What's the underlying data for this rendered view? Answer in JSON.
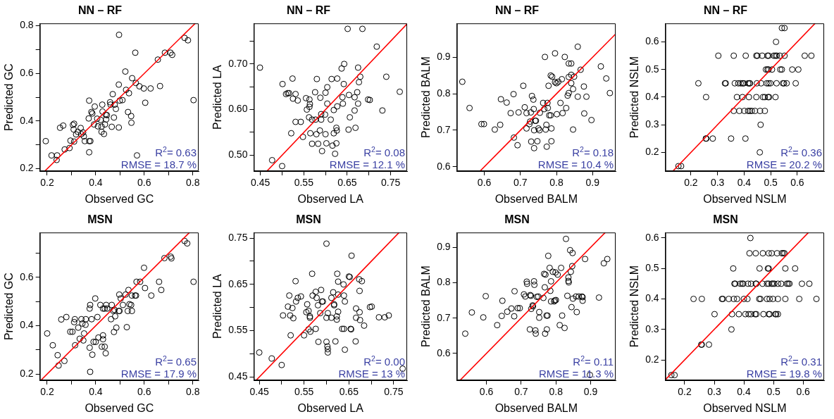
{
  "chart_data": [
    {
      "type": "scatter",
      "title": "NN – RF",
      "xlabel": "Observed GC",
      "ylabel": "Predicted GC",
      "xlim": [
        0.17,
        0.824
      ],
      "ylim": [
        0.19,
        0.81
      ],
      "xticks": [
        0.2,
        {
          "value": 0.3,
          "label": null
        },
        0.4,
        {
          "value": 0.5,
          "label": null
        },
        0.6,
        {
          "value": 0.7,
          "label": null
        },
        0.8
      ],
      "yticks": [
        0.2,
        {
          "value": 0.3,
          "label": null
        },
        0.4,
        {
          "value": 0.5,
          "label": null
        },
        0.6,
        {
          "value": 0.7,
          "label": null
        },
        0.8
      ],
      "marker": "circle",
      "annotations": [
        "R$^{2}$= 0.63",
        "RMSE = 18.7 %"
      ],
      "series": [
        {
          "type": "scatter",
          "color": "#000000",
          "x": [
            0.194,
            0.218,
            0.241,
            0.239,
            0.253,
            0.266,
            0.272,
            0.292,
            0.296,
            0.306,
            0.311,
            0.309,
            0.311,
            0.319,
            0.326,
            0.338,
            0.34,
            0.348,
            0.351,
            0.355,
            0.373,
            0.378,
            0.373,
            0.373,
            0.371,
            0.382,
            0.386,
            0.393,
            0.396,
            0.406,
            0.409,
            0.42,
            0.424,
            0.427,
            0.428,
            0.424,
            0.434,
            0.438,
            0.441,
            0.443,
            0.446,
            0.459,
            0.461,
            0.466,
            0.47,
            0.475,
            0.478,
            0.483,
            0.495,
            0.495,
            0.496,
            0.499,
            0.51,
            0.522,
            0.525,
            0.533,
            0.537,
            0.546,
            0.547,
            0.55,
            0.563,
            0.565,
            0.57,
            0.58,
            0.598,
            0.604,
            0.626,
            0.656,
            0.665,
            0.685,
            0.708,
            0.715,
            0.766,
            0.78,
            0.803
          ],
          "values": [
            0.316,
            0.256,
            0.256,
            0.237,
            0.372,
            0.381,
            0.281,
            0.287,
            0.318,
            0.384,
            0.389,
            0.365,
            0.314,
            0.344,
            0.355,
            0.371,
            0.345,
            0.352,
            0.336,
            0.316,
            0.316,
            0.316,
            0.269,
            0.486,
            0.411,
            0.438,
            0.432,
            0.386,
            0.461,
            0.41,
            0.378,
            0.405,
            0.377,
            0.469,
            0.44,
            0.355,
            0.346,
            0.386,
            0.427,
            0.407,
            0.425,
            0.479,
            0.469,
            0.376,
            0.513,
            0.415,
            0.469,
            0.451,
            0.373,
            0.553,
            0.762,
            0.486,
            0.488,
            0.608,
            0.531,
            0.438,
            0.517,
            0.421,
            0.393,
            0.58,
            0.687,
            0.56,
            0.256,
            0.546,
            0.537,
            0.477,
            0.537,
            0.658,
            0.547,
            0.687,
            0.687,
            0.678,
            0.749,
            0.739,
            0.488
          ]
        },
        {
          "type": "line",
          "marker": "none",
          "color": "#ff0000",
          "x": [
            0.19,
            0.81
          ],
          "values": [
            0.19,
            0.81
          ]
        }
      ]
    },
    {
      "type": "scatter",
      "title": "NN – RF",
      "xlabel": "Observed LA",
      "ylabel": "Predicted LA",
      "xlim": [
        0.435,
        0.788
      ],
      "ylim": [
        0.465,
        0.789
      ],
      "xticks": [
        0.45,
        {
          "value": 0.5,
          "label": null
        },
        0.55,
        {
          "value": 0.6,
          "label": null
        },
        0.65,
        {
          "value": 0.7,
          "label": null
        },
        0.75
      ],
      "yticks": [
        {
          "value": 0.5,
          "label": "0.50"
        },
        {
          "value": 0.55,
          "label": null
        },
        {
          "value": 0.6,
          "label": "0.60"
        },
        {
          "value": 0.65,
          "label": null
        },
        {
          "value": 0.7,
          "label": "0.70"
        },
        {
          "value": 0.75,
          "label": null
        }
      ],
      "marker": "circle",
      "annotations": [
        "R$^{2}$= 0.08",
        "RMSE = 12.1 %"
      ],
      "series": [
        {
          "type": "scatter",
          "color": "#000000",
          "x": [
            0.449,
            0.477,
            0.5,
            0.501,
            0.509,
            0.513,
            0.516,
            0.524,
            0.525,
            0.521,
            0.531,
            0.531,
            0.536,
            0.543,
            0.548,
            0.555,
            0.557,
            0.563,
            0.564,
            0.563,
            0.562,
            0.565,
            0.569,
            0.569,
            0.576,
            0.577,
            0.58,
            0.579,
            0.583,
            0.588,
            0.587,
            0.59,
            0.59,
            0.592,
            0.599,
            0.6,
            0.6,
            0.602,
            0.604,
            0.604,
            0.612,
            0.614,
            0.616,
            0.619,
            0.619,
            0.622,
            0.625,
            0.625,
            0.626,
            0.627,
            0.627,
            0.637,
            0.639,
            0.64,
            0.642,
            0.643,
            0.651,
            0.653,
            0.654,
            0.656,
            0.667,
            0.667,
            0.669,
            0.673,
            0.675,
            0.675,
            0.677,
            0.68,
            0.685,
            0.698,
            0.702,
            0.718,
            0.731,
            0.74,
            0.771
          ],
          "values": [
            0.692,
            0.489,
            0.476,
            0.656,
            0.634,
            0.636,
            0.636,
            0.668,
            0.624,
            0.548,
            0.634,
            0.573,
            0.62,
            0.573,
            0.54,
            0.625,
            0.6,
            0.622,
            0.612,
            0.606,
            0.583,
            0.548,
            0.525,
            0.578,
            0.638,
            0.578,
            0.667,
            0.546,
            0.525,
            0.626,
            0.554,
            0.59,
            0.578,
            0.509,
            0.589,
            0.637,
            0.546,
            0.526,
            0.649,
            0.613,
            0.578,
            0.667,
            0.521,
            0.599,
            0.548,
            0.503,
            0.526,
            0.56,
            0.554,
            0.607,
            0.668,
            0.69,
            0.627,
            0.613,
            0.656,
            0.7,
            0.777,
            0.556,
            0.632,
            0.583,
            0.627,
            0.598,
            0.56,
            0.638,
            0.692,
            0.613,
            0.66,
            0.672,
            0.777,
            0.622,
            0.621,
            0.738,
            0.598,
            0.672,
            0.639
          ]
        },
        {
          "type": "line",
          "marker": "none",
          "color": "#ff0000",
          "x": [
            0.465,
            0.788
          ],
          "values": [
            0.465,
            0.788
          ]
        }
      ]
    },
    {
      "type": "scatter",
      "title": "NN – RF",
      "xlabel": "Observed BALM",
      "ylabel": "Predicted BALM",
      "xlim": [
        0.524,
        0.964
      ],
      "ylim": [
        0.588,
        0.993
      ],
      "xticks": [
        0.6,
        0.7,
        0.8,
        0.9
      ],
      "yticks": [
        0.6,
        0.7,
        0.8,
        0.9
      ],
      "marker": "circle",
      "annotations": [
        "R$^{2}$= 0.18",
        "RMSE = 10.4 %"
      ],
      "series": [
        {
          "type": "scatter",
          "color": "#000000",
          "x": [
            0.539,
            0.559,
            0.592,
            0.599,
            0.629,
            0.644,
            0.646,
            0.662,
            0.673,
            0.681,
            0.682,
            0.692,
            0.695,
            0.708,
            0.712,
            0.717,
            0.717,
            0.725,
            0.727,
            0.729,
            0.73,
            0.732,
            0.736,
            0.737,
            0.738,
            0.738,
            0.741,
            0.743,
            0.747,
            0.75,
            0.753,
            0.754,
            0.763,
            0.766,
            0.768,
            0.77,
            0.772,
            0.773,
            0.775,
            0.776,
            0.778,
            0.78,
            0.784,
            0.784,
            0.786,
            0.786,
            0.788,
            0.796,
            0.796,
            0.8,
            0.801,
            0.805,
            0.811,
            0.815,
            0.817,
            0.823,
            0.827,
            0.831,
            0.834,
            0.834,
            0.834,
            0.841,
            0.841,
            0.841,
            0.846,
            0.846,
            0.849,
            0.859,
            0.859,
            0.867,
            0.876,
            0.877,
            0.883,
            0.897,
            0.923,
            0.938,
            0.948
          ],
          "values": [
            0.833,
            0.761,
            0.717,
            0.717,
            0.702,
            0.715,
            0.785,
            0.776,
            0.747,
            0.799,
            0.68,
            0.659,
            0.749,
            0.822,
            0.763,
            0.747,
            0.705,
            0.717,
            0.724,
            0.749,
            0.669,
            0.794,
            0.784,
            0.758,
            0.7,
            0.651,
            0.726,
            0.726,
            0.67,
            0.705,
            0.7,
            0.748,
            0.775,
            0.758,
            0.901,
            0.702,
            0.715,
            0.655,
            0.775,
            0.761,
            0.822,
            0.741,
            0.741,
            0.85,
            0.705,
            0.67,
            0.847,
            0.911,
            0.832,
            0.829,
            0.744,
            0.833,
            0.775,
            0.84,
            0.747,
            0.901,
            0.761,
            0.795,
            0.802,
            0.846,
            0.883,
            0.883,
            0.829,
            0.852,
            0.813,
            0.702,
            0.847,
            0.792,
            0.929,
            0.866,
            0.82,
            0.746,
            0.792,
            0.728,
            0.875,
            0.842,
            0.802
          ]
        },
        {
          "type": "line",
          "marker": "none",
          "color": "#ff0000",
          "x": [
            0.588,
            0.964
          ],
          "values": [
            0.588,
            0.964
          ]
        }
      ]
    },
    {
      "type": "scatter",
      "title": "NN – RF",
      "xlabel": "Observed NSLM",
      "ylabel": "Predicted NSLM",
      "xlim": [
        0.104,
        0.701
      ],
      "ylim": [
        0.132,
        0.667
      ],
      "xticks": [
        0.2,
        0.3,
        0.4,
        0.5,
        0.6
      ],
      "yticks": [
        0.2,
        0.3,
        0.4,
        0.5,
        0.6
      ],
      "marker": "circle",
      "annotations": [
        "R$^{2}$= 0.36",
        "RMSE = 20.2 %"
      ],
      "series": [
        {
          "type": "scatter",
          "color": "#000000",
          "x": [
            0.153,
            0.163,
            0.459,
            0.256,
            0.258,
            0.282,
            0.351,
            0.405,
            0.462,
            0.361,
            0.382,
            0.401,
            0.415,
            0.422,
            0.429,
            0.441,
            0.46,
            0.478,
            0.257,
            0.373,
            0.394,
            0.418,
            0.446,
            0.471,
            0.478,
            0.49,
            0.494,
            0.518,
            0.228,
            0.328,
            0.331,
            0.365,
            0.378,
            0.387,
            0.394,
            0.399,
            0.415,
            0.42,
            0.422,
            0.448,
            0.464,
            0.485,
            0.492,
            0.499,
            0.522,
            0.546,
            0.55,
            0.56,
            0.594,
            0.482,
            0.488,
            0.492,
            0.505,
            0.536,
            0.542,
            0.581,
            0.604,
            0.303,
            0.361,
            0.406,
            0.446,
            0.45,
            0.468,
            0.488,
            0.492,
            0.512,
            0.518,
            0.523,
            0.534,
            0.552,
            0.628,
            0.653,
            0.52,
            0.542,
            0.552
          ],
          "values": [
            0.15,
            0.15,
            0.2,
            0.25,
            0.25,
            0.25,
            0.25,
            0.25,
            0.3,
            0.35,
            0.35,
            0.35,
            0.35,
            0.35,
            0.35,
            0.35,
            0.35,
            0.35,
            0.4,
            0.4,
            0.4,
            0.4,
            0.4,
            0.4,
            0.4,
            0.4,
            0.4,
            0.4,
            0.45,
            0.45,
            0.45,
            0.45,
            0.45,
            0.45,
            0.45,
            0.45,
            0.45,
            0.45,
            0.45,
            0.45,
            0.45,
            0.45,
            0.45,
            0.45,
            0.45,
            0.45,
            0.45,
            0.45,
            0.45,
            0.5,
            0.5,
            0.5,
            0.5,
            0.5,
            0.5,
            0.5,
            0.5,
            0.55,
            0.55,
            0.55,
            0.55,
            0.55,
            0.55,
            0.55,
            0.55,
            0.55,
            0.55,
            0.55,
            0.55,
            0.55,
            0.55,
            0.55,
            0.6,
            0.65,
            0.65
          ]
        },
        {
          "type": "line",
          "marker": "none",
          "color": "#ff0000",
          "x": [
            0.132,
            0.667
          ],
          "values": [
            0.132,
            0.667
          ]
        }
      ]
    },
    {
      "type": "scatter",
      "title": "MSN",
      "xlabel": "Observed GC",
      "ylabel": "Predicted GC",
      "xlim": [
        0.17,
        0.824
      ],
      "ylim": [
        0.174,
        0.786
      ],
      "xticks": [
        0.2,
        {
          "value": 0.3,
          "label": null
        },
        0.4,
        {
          "value": 0.5,
          "label": null
        },
        0.6,
        {
          "value": 0.7,
          "label": null
        },
        0.8
      ],
      "yticks": [
        0.2,
        {
          "value": 0.3,
          "label": null
        },
        0.4,
        {
          "value": 0.5,
          "label": null
        },
        0.6,
        {
          "value": 0.7,
          "label": null
        }
      ],
      "marker": "circle",
      "annotations": [
        "R$^{2}$= 0.65",
        "RMSE = 17.9 %"
      ],
      "series": [
        {
          "type": "scatter",
          "color": "#000000",
          "x": [
            0.2,
            0.223,
            0.243,
            0.247,
            0.258,
            0.271,
            0.279,
            0.295,
            0.304,
            0.314,
            0.311,
            0.315,
            0.328,
            0.334,
            0.341,
            0.345,
            0.349,
            0.352,
            0.358,
            0.359,
            0.375,
            0.375,
            0.377,
            0.377,
            0.383,
            0.386,
            0.391,
            0.4,
            0.398,
            0.407,
            0.411,
            0.419,
            0.425,
            0.43,
            0.43,
            0.437,
            0.43,
            0.437,
            0.441,
            0.443,
            0.447,
            0.463,
            0.466,
            0.472,
            0.475,
            0.48,
            0.485,
            0.477,
            0.495,
            0.498,
            0.497,
            0.503,
            0.512,
            0.523,
            0.528,
            0.532,
            0.535,
            0.539,
            0.546,
            0.549,
            0.549,
            0.562,
            0.566,
            0.568,
            0.583,
            0.599,
            0.603,
            0.629,
            0.661,
            0.67,
            0.683,
            0.709,
            0.712,
            0.766,
            0.777,
            0.803
          ],
          "values": [
            0.368,
            0.319,
            0.278,
            0.235,
            0.426,
            0.254,
            0.436,
            0.375,
            0.375,
            0.427,
            0.415,
            0.319,
            0.392,
            0.346,
            0.427,
            0.409,
            0.339,
            0.368,
            0.404,
            0.427,
            0.309,
            0.471,
            0.209,
            0.486,
            0.427,
            0.28,
            0.333,
            0.333,
            0.513,
            0.436,
            0.351,
            0.486,
            0.313,
            0.36,
            0.344,
            0.313,
            0.471,
            0.471,
            0.286,
            0.486,
            0.471,
            0.427,
            0.486,
            0.462,
            0.374,
            0.439,
            0.392,
            0.466,
            0.461,
            0.461,
            0.529,
            0.513,
            0.486,
            0.529,
            0.394,
            0.461,
            0.548,
            0.489,
            0.486,
            0.461,
            0.525,
            0.525,
            0.525,
            0.582,
            0.582,
            0.64,
            0.556,
            0.525,
            0.582,
            0.548,
            0.68,
            0.686,
            0.679,
            0.751,
            0.741,
            0.582
          ]
        },
        {
          "type": "line",
          "marker": "none",
          "color": "#ff0000",
          "x": [
            0.174,
            0.786
          ],
          "values": [
            0.174,
            0.786
          ]
        }
      ]
    },
    {
      "type": "scatter",
      "title": "MSN",
      "xlabel": "Observed LA",
      "ylabel": "Predicted LA",
      "xlim": [
        0.438,
        0.78
      ],
      "ylim": [
        0.443,
        0.762
      ],
      "xticks": [
        0.45,
        {
          "value": 0.5,
          "label": null
        },
        0.55,
        {
          "value": 0.6,
          "label": null
        },
        0.65,
        {
          "value": 0.7,
          "label": null
        },
        0.75
      ],
      "yticks": [
        0.45,
        {
          "value": 0.5,
          "label": null
        },
        0.55,
        {
          "value": 0.6,
          "label": null
        },
        0.65,
        {
          "value": 0.7,
          "label": null
        },
        0.75
      ],
      "marker": "circle",
      "annotations": [
        "R$^{2}$= 0.00",
        "RMSE = 13 %"
      ],
      "series": [
        {
          "type": "scatter",
          "color": "#000000",
          "x": [
            0.45,
            0.478,
            0.5,
            0.503,
            0.514,
            0.517,
            0.519,
            0.52,
            0.524,
            0.526,
            0.531,
            0.532,
            0.536,
            0.543,
            0.55,
            0.557,
            0.555,
            0.56,
            0.563,
            0.563,
            0.56,
            0.564,
            0.568,
            0.569,
            0.576,
            0.576,
            0.578,
            0.582,
            0.581,
            0.586,
            0.588,
            0.59,
            0.592,
            0.6,
            0.6,
            0.602,
            0.603,
            0.603,
            0.603,
            0.6,
            0.611,
            0.611,
            0.617,
            0.617,
            0.615,
            0.62,
            0.623,
            0.624,
            0.623,
            0.626,
            0.626,
            0.626,
            0.635,
            0.639,
            0.638,
            0.639,
            0.641,
            0.641,
            0.65,
            0.652,
            0.654,
            0.655,
            0.656,
            0.666,
            0.666,
            0.665,
            0.673,
            0.674,
            0.674,
            0.675,
            0.679,
            0.684,
            0.697,
            0.701,
            0.717,
            0.73,
            0.739,
            0.77
          ],
          "values": [
            0.503,
            0.49,
            0.476,
            0.583,
            0.602,
            0.626,
            0.583,
            0.54,
            0.599,
            0.577,
            0.657,
            0.613,
            0.621,
            0.624,
            0.54,
            0.607,
            0.59,
            0.593,
            0.581,
            0.578,
            0.553,
            0.548,
            0.673,
            0.626,
            0.554,
            0.634,
            0.621,
            0.526,
            0.605,
            0.588,
            0.638,
            0.613,
            0.613,
            0.738,
            0.526,
            0.516,
            0.51,
            0.503,
            0.588,
            0.578,
            0.621,
            0.578,
            0.607,
            0.605,
            0.633,
            0.527,
            0.574,
            0.673,
            0.581,
            0.656,
            0.591,
            0.628,
            0.554,
            0.554,
            0.65,
            0.626,
            0.613,
            0.509,
            0.667,
            0.666,
            0.554,
            0.553,
            0.712,
            0.598,
            0.578,
            0.527,
            0.661,
            0.636,
            0.59,
            0.573,
            0.657,
            0.561,
            0.601,
            0.602,
            0.579,
            0.579,
            0.583,
            0.468
          ]
        },
        {
          "type": "line",
          "marker": "none",
          "color": "#ff0000",
          "x": [
            0.443,
            0.762
          ],
          "values": [
            0.443,
            0.762
          ]
        }
      ]
    },
    {
      "type": "scatter",
      "title": "MSN",
      "xlabel": "Observed BALM",
      "ylabel": "Predicted BALM",
      "xlim": [
        0.515,
        0.972
      ],
      "ylim": [
        0.524,
        0.942
      ],
      "xticks": [
        0.6,
        0.7,
        0.8,
        0.9
      ],
      "yticks": [
        0.6,
        0.7,
        0.8,
        0.9
      ],
      "marker": "circle",
      "annotations": [
        "R$^{2}$= 0.11",
        "RMSE = 11.3 %"
      ],
      "series": [
        {
          "type": "scatter",
          "color": "#000000",
          "x": [
            0.539,
            0.558,
            0.591,
            0.598,
            0.631,
            0.644,
            0.646,
            0.66,
            0.672,
            0.68,
            0.681,
            0.69,
            0.696,
            0.708,
            0.712,
            0.716,
            0.717,
            0.725,
            0.726,
            0.728,
            0.729,
            0.733,
            0.734,
            0.737,
            0.738,
            0.741,
            0.742,
            0.745,
            0.749,
            0.752,
            0.752,
            0.764,
            0.766,
            0.768,
            0.769,
            0.77,
            0.773,
            0.774,
            0.776,
            0.778,
            0.782,
            0.784,
            0.786,
            0.786,
            0.791,
            0.795,
            0.797,
            0.799,
            0.8,
            0.805,
            0.811,
            0.815,
            0.818,
            0.825,
            0.829,
            0.833,
            0.836,
            0.836,
            0.837,
            0.841,
            0.843,
            0.845,
            0.847,
            0.848,
            0.849,
            0.858,
            0.86,
            0.866,
            0.875,
            0.877,
            0.877,
            0.884,
            0.924,
            0.938,
            0.948,
            0.898
          ],
          "values": [
            0.656,
            0.716,
            0.702,
            0.762,
            0.68,
            0.706,
            0.749,
            0.718,
            0.727,
            0.705,
            0.776,
            0.728,
            0.728,
            0.767,
            0.761,
            0.803,
            0.797,
            0.668,
            0.765,
            0.763,
            0.726,
            0.736,
            0.733,
            0.804,
            0.794,
            0.665,
            0.656,
            0.76,
            0.761,
            0.717,
            0.701,
            0.757,
            0.825,
            0.787,
            0.656,
            0.823,
            0.707,
            0.668,
            0.707,
            0.876,
            0.842,
            0.777,
            0.804,
            0.747,
            0.831,
            0.747,
            0.75,
            0.829,
            0.751,
            0.823,
            0.68,
            0.842,
            0.707,
            0.672,
            0.924,
            0.763,
            0.815,
            0.805,
            0.801,
            0.892,
            0.831,
            0.731,
            0.847,
            0.884,
            0.755,
            0.761,
            0.717,
            0.761,
            0.761,
            0.759,
            0.749,
            0.867,
            0.758,
            0.855,
            0.867,
            0.539
          ]
        },
        {
          "type": "line",
          "marker": "none",
          "color": "#ff0000",
          "x": [
            0.524,
            0.942
          ],
          "values": [
            0.524,
            0.942
          ]
        }
      ]
    },
    {
      "type": "scatter",
      "title": "MSN",
      "xlabel": "Observed NSLM",
      "ylabel": "Predicted NSLM",
      "xlim": [
        0.135,
        0.671
      ],
      "ylim": [
        0.133,
        0.618
      ],
      "xticks": [
        0.2,
        0.3,
        0.4,
        0.5,
        0.6
      ],
      "yticks": [
        0.2,
        0.3,
        0.4,
        0.5,
        0.6
      ],
      "marker": "circle",
      "annotations": [
        "R$^{2}$= 0.31",
        "RMSE = 19.8 %"
      ],
      "series": [
        {
          "type": "scatter",
          "color": "#000000",
          "x": [
            0.155,
            0.166,
            0.256,
            0.258,
            0.282,
            0.358,
            0.301,
            0.36,
            0.383,
            0.405,
            0.416,
            0.424,
            0.438,
            0.442,
            0.466,
            0.484,
            0.487,
            0.506,
            0.509,
            0.515,
            0.23,
            0.258,
            0.326,
            0.329,
            0.349,
            0.366,
            0.377,
            0.4,
            0.412,
            0.452,
            0.456,
            0.478,
            0.487,
            0.498,
            0.515,
            0.54,
            0.587,
            0.645,
            0.368,
            0.371,
            0.388,
            0.394,
            0.398,
            0.414,
            0.424,
            0.44,
            0.442,
            0.463,
            0.478,
            0.484,
            0.494,
            0.498,
            0.503,
            0.515,
            0.526,
            0.545,
            0.55,
            0.554,
            0.596,
            0.621,
            0.364,
            0.453,
            0.481,
            0.484,
            0.54,
            0.573,
            0.419,
            0.44,
            0.464,
            0.484,
            0.494,
            0.512,
            0.528,
            0.533,
            0.537,
            0.422
          ],
          "values": [
            0.15,
            0.15,
            0.25,
            0.25,
            0.25,
            0.3,
            0.35,
            0.35,
            0.35,
            0.35,
            0.35,
            0.35,
            0.35,
            0.35,
            0.35,
            0.35,
            0.35,
            0.35,
            0.35,
            0.35,
            0.4,
            0.4,
            0.4,
            0.4,
            0.4,
            0.4,
            0.4,
            0.4,
            0.4,
            0.4,
            0.4,
            0.4,
            0.4,
            0.4,
            0.4,
            0.4,
            0.4,
            0.4,
            0.45,
            0.45,
            0.45,
            0.45,
            0.45,
            0.45,
            0.45,
            0.45,
            0.45,
            0.45,
            0.45,
            0.45,
            0.45,
            0.45,
            0.45,
            0.45,
            0.45,
            0.45,
            0.45,
            0.45,
            0.45,
            0.45,
            0.5,
            0.5,
            0.5,
            0.5,
            0.5,
            0.5,
            0.55,
            0.55,
            0.55,
            0.55,
            0.55,
            0.55,
            0.55,
            0.55,
            0.55,
            0.6
          ]
        },
        {
          "type": "line",
          "marker": "none",
          "color": "#ff0000",
          "x": [
            0.135,
            0.618
          ],
          "values": [
            0.135,
            0.618
          ]
        }
      ]
    }
  ]
}
